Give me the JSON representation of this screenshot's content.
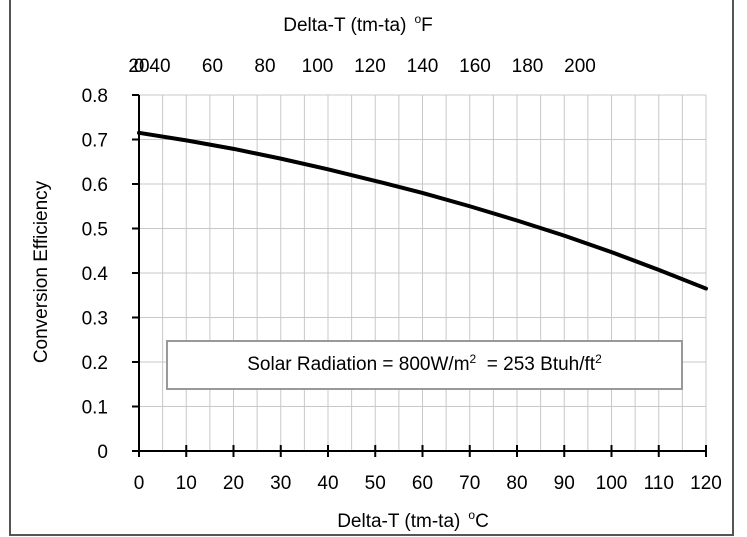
{
  "chart_data": {
    "type": "line",
    "title": "",
    "xlabel": "Delta-T (tm-ta)",
    "xlabel_unit_prefix": "o",
    "xlabel_unit": "C",
    "x2label": "Delta-T (tm-ta)",
    "x2label_unit_prefix": "o",
    "x2label_unit": "F",
    "ylabel": "Conversion Efficiency",
    "xlim": [
      0,
      120
    ],
    "ylim": [
      0,
      0.8
    ],
    "xticks": [
      "0",
      "10",
      "20",
      "30",
      "40",
      "50",
      "60",
      "70",
      "80",
      "90",
      "100",
      "110",
      "120"
    ],
    "x2ticks": [
      "0",
      "20",
      "40",
      "60",
      "80",
      "100",
      "120",
      "140",
      "160",
      "180",
      "200"
    ],
    "yticks": [
      "0",
      "0.1",
      "0.2",
      "0.3",
      "0.4",
      "0.5",
      "0.6",
      "0.7",
      "0.8"
    ],
    "grid": true,
    "series": [
      {
        "x": [
          0,
          10,
          20,
          30,
          40,
          50,
          60,
          70,
          80,
          90,
          100,
          110,
          120
        ],
        "y": [
          0.715,
          0.698,
          0.679,
          0.657,
          0.633,
          0.607,
          0.58,
          0.55,
          0.518,
          0.484,
          0.447,
          0.407,
          0.365
        ]
      }
    ],
    "annotation": {
      "prefix": "Solar Radiation = 800W/m",
      "sup1": "2",
      "middle": "  = 253 Btuh/ft",
      "sup2": "2"
    }
  }
}
